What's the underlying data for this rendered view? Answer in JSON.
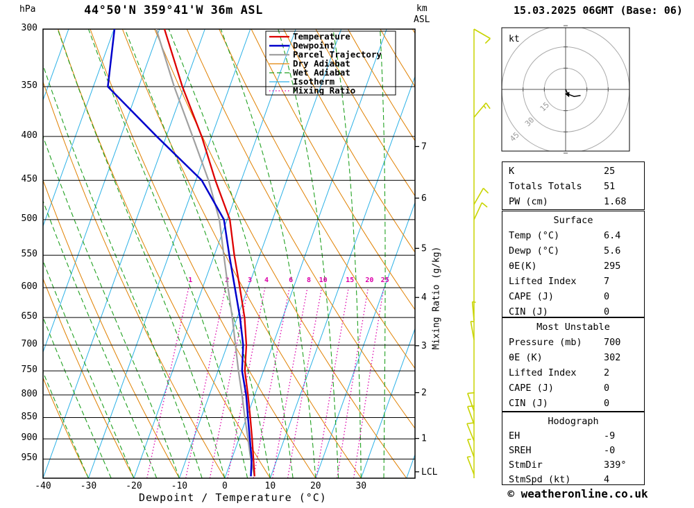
{
  "header": {
    "station_title": "44°50'N 359°41'W 36m ASL",
    "run_datetime": "15.03.2025 06GMT (Base: 06)",
    "pressure_axis_unit": "hPa",
    "altitude_axis_unit_line1": "km",
    "altitude_axis_unit_line2": "ASL"
  },
  "axes": {
    "x_label": "Dewpoint / Temperature (°C)",
    "mixing_ratio_axis_label": "Mixing Ratio (g/kg)",
    "pressure_ticks": [
      300,
      350,
      400,
      450,
      500,
      550,
      600,
      650,
      700,
      750,
      800,
      850,
      900,
      950
    ],
    "temp_ticks": [
      -40,
      -30,
      -20,
      -10,
      0,
      10,
      20,
      30
    ],
    "km_ticks": [
      {
        "km": "1",
        "pressure_hpa": 899
      },
      {
        "km": "2",
        "pressure_hpa": 795
      },
      {
        "km": "3",
        "pressure_hpa": 701
      },
      {
        "km": "4",
        "pressure_hpa": 616
      },
      {
        "km": "5",
        "pressure_hpa": 540
      },
      {
        "km": "6",
        "pressure_hpa": 472
      },
      {
        "km": "7",
        "pressure_hpa": 411
      }
    ],
    "lcl_label": "LCL",
    "lcl_pressure_hpa": 983
  },
  "legend": {
    "items": [
      {
        "label": "Temperature",
        "color": "#dd0000",
        "width": 2.3,
        "dash": ""
      },
      {
        "label": "Dewpoint",
        "color": "#0000cc",
        "width": 2.5,
        "dash": ""
      },
      {
        "label": "Parcel Trajectory",
        "color": "#a0a0a0",
        "width": 2.2,
        "dash": ""
      },
      {
        "label": "Dry Adiabat",
        "color": "#e08000",
        "width": 1.2,
        "dash": ""
      },
      {
        "label": "Wet Adiabat",
        "color": "#21a121",
        "width": 1.2,
        "dash": "7 4"
      },
      {
        "label": "Isotherm",
        "color": "#2bb1e6",
        "width": 1.2,
        "dash": ""
      },
      {
        "label": "Mixing Ratio",
        "color": "#dd00aa",
        "width": 1.3,
        "dash": "1.5 3"
      }
    ]
  },
  "chart_data": {
    "type": "skewt_log_p_sounding",
    "pressure_range_hpa": [
      300,
      1000
    ],
    "surface_temp_range_c": [
      -40,
      41.9
    ],
    "isotherms_c": {
      "min": -100,
      "max": 40,
      "step": 10
    },
    "dry_adiabats_theta_c": {
      "min": -40,
      "max": 130,
      "step": 10
    },
    "wet_adiabats_thetaw_c": {
      "min": -30,
      "max": 35,
      "step": 5
    },
    "mixing_ratio_g_kg": [
      1,
      2,
      3,
      4,
      6,
      8,
      10,
      15,
      20,
      25
    ],
    "temperature_profile": {
      "pressure_hpa": [
        995,
        950,
        900,
        850,
        800,
        750,
        700,
        650,
        600,
        550,
        500,
        450,
        400,
        350,
        300
      ],
      "temp_c": [
        6.4,
        4.8,
        2.9,
        0.8,
        -1.5,
        -4.1,
        -5.8,
        -8.4,
        -11.8,
        -15.6,
        -19.4,
        -25.7,
        -32.2,
        -40.4,
        -48.9
      ]
    },
    "dewpoint_profile": {
      "pressure_hpa": [
        995,
        950,
        900,
        850,
        800,
        750,
        700,
        650,
        600,
        550,
        500,
        450,
        400,
        350,
        300
      ],
      "temp_c": [
        5.6,
        4.4,
        2.4,
        0.3,
        -1.9,
        -4.7,
        -6.5,
        -9.4,
        -12.9,
        -16.7,
        -20.7,
        -28.7,
        -42.1,
        -56.8,
        -59.9
      ]
    },
    "parcel_profile": {
      "pressure_hpa": [
        995,
        950,
        900,
        850,
        800,
        750,
        700,
        650,
        600,
        550,
        500,
        450,
        400,
        350,
        300
      ],
      "temp_c": [
        6.4,
        4.2,
        2.0,
        -0.4,
        -2.8,
        -5.5,
        -8.2,
        -11.1,
        -14.4,
        -17.9,
        -21.7,
        -27.2,
        -34.2,
        -42.2,
        -50.7
      ]
    },
    "wind_barbs": [
      {
        "pressure_hpa": 300,
        "dir_deg": 120,
        "speed_kt": 10
      },
      {
        "pressure_hpa": 380,
        "dir_deg": 40,
        "speed_kt": 15
      },
      {
        "pressure_hpa": 480,
        "dir_deg": 30,
        "speed_kt": 10
      },
      {
        "pressure_hpa": 500,
        "dir_deg": 25,
        "speed_kt": 10
      },
      {
        "pressure_hpa": 655,
        "dir_deg": 355,
        "speed_kt": 5
      },
      {
        "pressure_hpa": 690,
        "dir_deg": 350,
        "speed_kt": 5
      },
      {
        "pressure_hpa": 835,
        "dir_deg": 340,
        "speed_kt": 10
      },
      {
        "pressure_hpa": 865,
        "dir_deg": 340,
        "speed_kt": 10
      },
      {
        "pressure_hpa": 905,
        "dir_deg": 338,
        "speed_kt": 10
      },
      {
        "pressure_hpa": 945,
        "dir_deg": 340,
        "speed_kt": 5
      },
      {
        "pressure_hpa": 990,
        "dir_deg": 339,
        "speed_kt": 5
      }
    ]
  },
  "hodograph": {
    "unit": "kt",
    "rings_kt": [
      15,
      30,
      45
    ],
    "trace_kt": [
      {
        "u": 0,
        "v": 0
      },
      {
        "u": 1.5,
        "v": -3.3
      },
      {
        "u": 6.0,
        "v": -5.0
      },
      {
        "u": 10.5,
        "v": -4.3
      }
    ],
    "storm_dir_deg": 339,
    "storm_speed_kt": 4
  },
  "tables": {
    "indices": {
      "rows": [
        [
          "K",
          "25"
        ],
        [
          "Totals Totals",
          "51"
        ],
        [
          "PW (cm)",
          "1.68"
        ]
      ]
    },
    "surface": {
      "title": "Surface",
      "rows": [
        [
          "Temp (°C)",
          "6.4"
        ],
        [
          "Dewp (°C)",
          "5.6"
        ],
        [
          "θE(K)",
          "295"
        ],
        [
          "Lifted Index",
          "7"
        ],
        [
          "CAPE (J)",
          "0"
        ],
        [
          "CIN (J)",
          "0"
        ]
      ]
    },
    "most_unstable": {
      "title": "Most Unstable",
      "rows": [
        [
          "Pressure (mb)",
          "700"
        ],
        [
          "θE (K)",
          "302"
        ],
        [
          "Lifted Index",
          "2"
        ],
        [
          "CAPE (J)",
          "0"
        ],
        [
          "CIN (J)",
          "0"
        ]
      ]
    },
    "hodograph_info": {
      "title": "Hodograph",
      "rows": [
        [
          "EH",
          "-9"
        ],
        [
          "SREH",
          "-0"
        ],
        [
          "StmDir",
          "339°"
        ],
        [
          "StmSpd (kt)",
          "4"
        ]
      ]
    }
  },
  "footer": {
    "credit": "© weatheronline.co.uk"
  }
}
